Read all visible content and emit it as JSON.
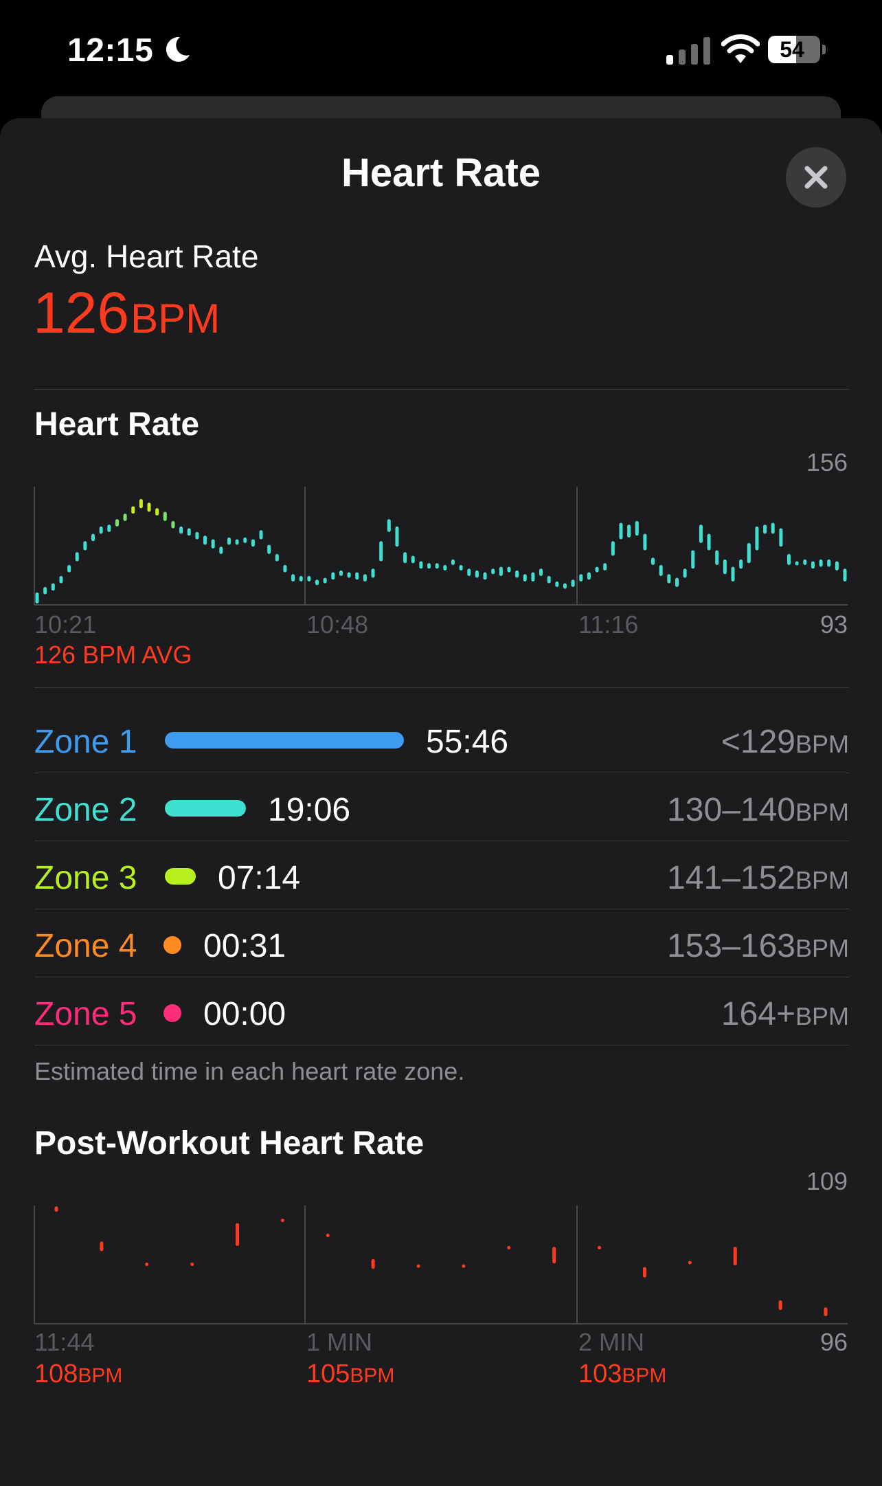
{
  "status_bar": {
    "time": "12:15",
    "battery": "54",
    "battery_level": 0.54
  },
  "header": {
    "title": "Heart Rate"
  },
  "summary": {
    "label": "Avg. Heart Rate",
    "value": "126",
    "unit": "BPM"
  },
  "heart_rate_chart": {
    "title": "Heart Rate",
    "y_max_label": "156",
    "y_min_label": "93",
    "x_ticks": [
      "10:21",
      "10:48",
      "11:16"
    ],
    "avg_caption": "126 BPM AVG",
    "colors": {
      "cyan": "#40e0d0",
      "green": "#7ee36a",
      "yellow": "#c8f01e"
    }
  },
  "zones": [
    {
      "name": "Zone 1",
      "time": "55:46",
      "range": "<129",
      "unit": "BPM",
      "color": "#3d9bf0",
      "fraction": 1.0
    },
    {
      "name": "Zone 2",
      "time": "19:06",
      "range": "130–140",
      "unit": "BPM",
      "color": "#40e0d0",
      "fraction": 0.34
    },
    {
      "name": "Zone 3",
      "time": "07:14",
      "range": "141–152",
      "unit": "BPM",
      "color": "#b8f01e",
      "fraction": 0.13
    },
    {
      "name": "Zone 4",
      "time": "00:31",
      "range": "153–163",
      "unit": "BPM",
      "color": "#ff8a1f",
      "fraction": 0.01
    },
    {
      "name": "Zone 5",
      "time": "00:00",
      "range": "164+",
      "unit": "BPM",
      "color": "#ff2d78",
      "fraction": 0.0
    }
  ],
  "zones_footnote": "Estimated time in each heart rate zone.",
  "post_workout": {
    "title": "Post-Workout Heart Rate",
    "y_max_label": "109",
    "y_min_label": "96",
    "x_ticks": [
      "11:44",
      "1 MIN",
      "2 MIN"
    ],
    "values": [
      {
        "value": "108",
        "unit": "BPM"
      },
      {
        "value": "105",
        "unit": "BPM"
      },
      {
        "value": "103",
        "unit": "BPM"
      }
    ],
    "color": "#ff3b1f"
  },
  "chart_data": [
    {
      "type": "bar",
      "title": "Heart Rate",
      "xlabel": "",
      "ylabel": "",
      "ylim": [
        93,
        156
      ],
      "x_ticks": [
        "10:21",
        "10:48",
        "11:16"
      ],
      "range_bars": [
        [
          93,
          99
        ],
        [
          98,
          102
        ],
        [
          100,
          104
        ],
        [
          104,
          108
        ],
        [
          110,
          114
        ],
        [
          116,
          121
        ],
        [
          122,
          127
        ],
        [
          127,
          131
        ],
        [
          131,
          135
        ],
        [
          132,
          136
        ],
        [
          135,
          139
        ],
        [
          138,
          142
        ],
        [
          142,
          146
        ],
        [
          145,
          150
        ],
        [
          143,
          148
        ],
        [
          141,
          145
        ],
        [
          138,
          143
        ],
        [
          134,
          138
        ],
        [
          131,
          135
        ],
        [
          130,
          134
        ],
        [
          128,
          132
        ],
        [
          125,
          130
        ],
        [
          123,
          128
        ],
        [
          120,
          124
        ],
        [
          125,
          129
        ],
        [
          125,
          128
        ],
        [
          126,
          129
        ],
        [
          124,
          128
        ],
        [
          128,
          133
        ],
        [
          120,
          125
        ],
        [
          116,
          120
        ],
        [
          110,
          114
        ],
        [
          105,
          109
        ],
        [
          105,
          108
        ],
        [
          105,
          108
        ],
        [
          103,
          106
        ],
        [
          104,
          107
        ],
        [
          106,
          110
        ],
        [
          108,
          111
        ],
        [
          107,
          110
        ],
        [
          106,
          110
        ],
        [
          105,
          109
        ],
        [
          107,
          112
        ],
        [
          116,
          127
        ],
        [
          132,
          139
        ],
        [
          124,
          135
        ],
        [
          115,
          121
        ],
        [
          115,
          119
        ],
        [
          112,
          116
        ],
        [
          112,
          115
        ],
        [
          112,
          115
        ],
        [
          111,
          114
        ],
        [
          114,
          117
        ],
        [
          111,
          114
        ],
        [
          108,
          112
        ],
        [
          107,
          111
        ],
        [
          106,
          110
        ],
        [
          109,
          112
        ],
        [
          108,
          113
        ],
        [
          110,
          113
        ],
        [
          107,
          111
        ],
        [
          105,
          109
        ],
        [
          105,
          110
        ],
        [
          108,
          112
        ],
        [
          104,
          108
        ],
        [
          102,
          105
        ],
        [
          101,
          104
        ],
        [
          102,
          106
        ],
        [
          105,
          109
        ],
        [
          106,
          110
        ],
        [
          110,
          113
        ],
        [
          111,
          115
        ],
        [
          119,
          127
        ],
        [
          128,
          137
        ],
        [
          129,
          136
        ],
        [
          130,
          138
        ],
        [
          122,
          131
        ],
        [
          114,
          118
        ],
        [
          108,
          114
        ],
        [
          104,
          109
        ],
        [
          102,
          107
        ],
        [
          107,
          112
        ],
        [
          112,
          122
        ],
        [
          126,
          136
        ],
        [
          122,
          131
        ],
        [
          114,
          122
        ],
        [
          109,
          117
        ],
        [
          105,
          113
        ],
        [
          112,
          117
        ],
        [
          115,
          126
        ],
        [
          122,
          135
        ],
        [
          131,
          136
        ],
        [
          131,
          137
        ],
        [
          124,
          134
        ],
        [
          114,
          120
        ],
        [
          114,
          116
        ],
        [
          114,
          117
        ],
        [
          112,
          116
        ],
        [
          113,
          117
        ],
        [
          113,
          117
        ],
        [
          111,
          116
        ],
        [
          105,
          112
        ]
      ]
    },
    {
      "type": "bar",
      "title": "Post-Workout Heart Rate",
      "xlabel": "",
      "ylabel": "",
      "ylim": [
        96,
        109
      ],
      "x_ticks": [
        "11:44",
        "1 MIN",
        "2 MIN"
      ],
      "range_bars": [
        [
          108.3,
          108.9
        ],
        [
          103.8,
          104.9
        ],
        [
          102.4,
          102.5
        ],
        [
          102.4,
          102.5
        ],
        [
          104.4,
          107.0
        ],
        [
          107.4,
          107.5
        ],
        [
          105.7,
          105.8
        ],
        [
          101.8,
          102.9
        ],
        [
          102.2,
          102.3
        ],
        [
          102.2,
          102.3
        ],
        [
          104.3,
          104.4
        ],
        [
          102.4,
          104.3
        ],
        [
          104.3,
          104.4
        ],
        [
          100.8,
          102.0
        ],
        [
          102.6,
          102.7
        ],
        [
          102.2,
          104.3
        ],
        [
          97.1,
          98.2
        ],
        [
          96.4,
          97.4
        ]
      ]
    }
  ]
}
